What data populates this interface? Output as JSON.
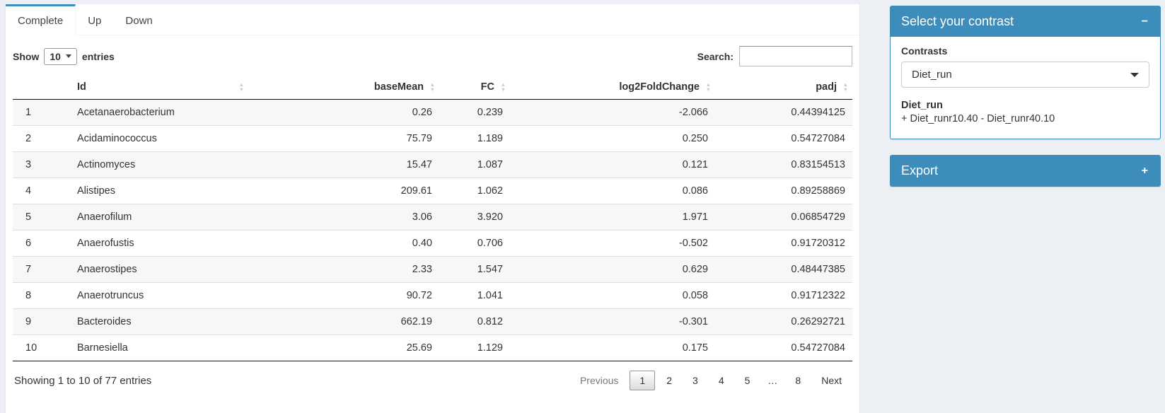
{
  "colors": {
    "primary": "#3c8dbc",
    "page_bg": "#ecf0f5"
  },
  "tabs": [
    {
      "label": "Complete",
      "active": true
    },
    {
      "label": "Up",
      "active": false
    },
    {
      "label": "Down",
      "active": false
    }
  ],
  "length_control": {
    "prefix": "Show",
    "selected": "10",
    "suffix": "entries"
  },
  "search": {
    "label": "Search:",
    "value": ""
  },
  "table": {
    "columns": [
      "Id",
      "baseMean",
      "FC",
      "log2FoldChange",
      "padj"
    ],
    "rows": [
      [
        "1",
        "Acetanaerobacterium",
        "0.26",
        "0.239",
        "-2.066",
        "0.44394125"
      ],
      [
        "2",
        "Acidaminococcus",
        "75.79",
        "1.189",
        "0.250",
        "0.54727084"
      ],
      [
        "3",
        "Actinomyces",
        "15.47",
        "1.087",
        "0.121",
        "0.83154513"
      ],
      [
        "4",
        "Alistipes",
        "209.61",
        "1.062",
        "0.086",
        "0.89258869"
      ],
      [
        "5",
        "Anaerofilum",
        "3.06",
        "3.920",
        "1.971",
        "0.06854729"
      ],
      [
        "6",
        "Anaerofustis",
        "0.40",
        "0.706",
        "-0.502",
        "0.91720312"
      ],
      [
        "7",
        "Anaerostipes",
        "2.33",
        "1.547",
        "0.629",
        "0.48447385"
      ],
      [
        "8",
        "Anaerotruncus",
        "90.72",
        "1.041",
        "0.058",
        "0.91712322"
      ],
      [
        "9",
        "Bacteroides",
        "662.19",
        "0.812",
        "-0.301",
        "0.26292721"
      ],
      [
        "10",
        "Barnesiella",
        "25.69",
        "1.129",
        "0.175",
        "0.54727084"
      ]
    ]
  },
  "summary": "Showing 1 to 10 of 77 entries",
  "pagination": {
    "previous": "Previous",
    "pages": [
      "1",
      "2",
      "3",
      "4",
      "5",
      "…",
      "8"
    ],
    "current": "1",
    "next": "Next"
  },
  "contrast_box": {
    "title": "Select your contrast",
    "collapse_icon": "−",
    "label": "Contrasts",
    "selected": "Diet_run",
    "detail_title": "Diet_run",
    "detail_text": "+ Diet_runr10.40 - Diet_runr40.10"
  },
  "export_box": {
    "title": "Export",
    "expand_icon": "+"
  }
}
